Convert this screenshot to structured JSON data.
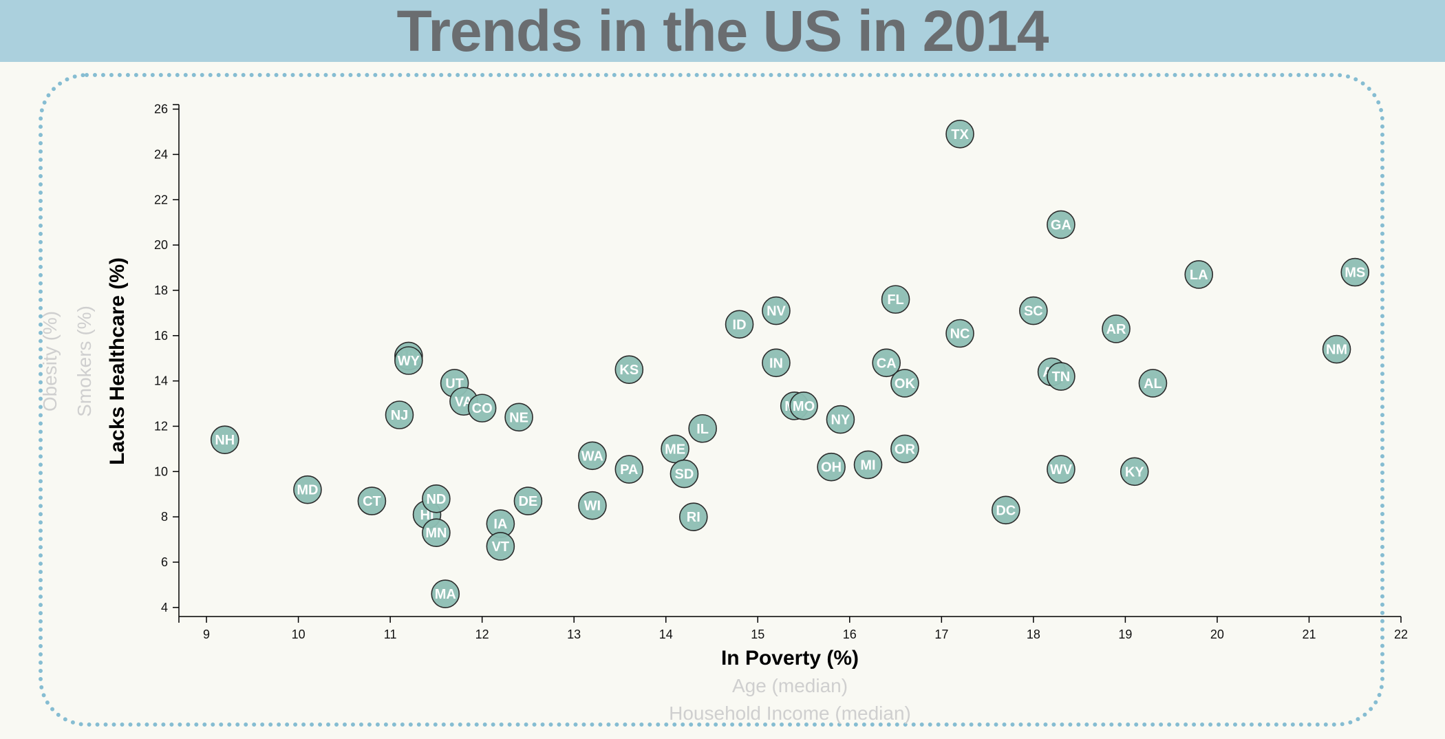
{
  "header": {
    "title": "Trends in the US in 2014"
  },
  "axes": {
    "x_labels": [
      {
        "text": "In Poverty (%)",
        "active": true
      },
      {
        "text": "Age (median)",
        "active": false
      },
      {
        "text": "Household Income (median)",
        "active": false
      }
    ],
    "y_labels": [
      {
        "text": "Lacks Healthcare (%)",
        "active": true
      },
      {
        "text": "Smokers (%)",
        "active": false
      },
      {
        "text": "Obesity (%)",
        "active": false
      }
    ]
  },
  "chart_data": {
    "type": "scatter",
    "title": "Trends in the US in 2014",
    "xlabel": "In Poverty (%)",
    "ylabel": "Lacks Healthcare (%)",
    "xlim": [
      8.7,
      22
    ],
    "ylim": [
      3.6,
      26.2
    ],
    "xticks": [
      9,
      10,
      11,
      12,
      13,
      14,
      15,
      16,
      17,
      18,
      19,
      20,
      21,
      22
    ],
    "yticks": [
      4,
      6,
      8,
      10,
      12,
      14,
      16,
      18,
      20,
      22,
      24,
      26
    ],
    "points": [
      {
        "label": "NH",
        "x": 9.2,
        "y": 11.4
      },
      {
        "label": "MD",
        "x": 10.1,
        "y": 9.2
      },
      {
        "label": "CT",
        "x": 10.8,
        "y": 8.7
      },
      {
        "label": "NJ",
        "x": 11.1,
        "y": 12.5
      },
      {
        "label": "WY",
        "x": 11.2,
        "y": 15.1
      },
      {
        "label": "WY",
        "x": 11.2,
        "y": 14.9
      },
      {
        "label": "HI",
        "x": 11.4,
        "y": 8.1
      },
      {
        "label": "ND",
        "x": 11.5,
        "y": 8.8
      },
      {
        "label": "MN",
        "x": 11.5,
        "y": 7.3
      },
      {
        "label": "MA",
        "x": 11.6,
        "y": 4.6
      },
      {
        "label": "UT",
        "x": 11.7,
        "y": 13.9
      },
      {
        "label": "VA",
        "x": 11.8,
        "y": 13.1
      },
      {
        "label": "CO",
        "x": 12.0,
        "y": 12.8
      },
      {
        "label": "IA",
        "x": 12.2,
        "y": 7.7
      },
      {
        "label": "VT",
        "x": 12.2,
        "y": 6.7
      },
      {
        "label": "NE",
        "x": 12.4,
        "y": 12.4
      },
      {
        "label": "DE",
        "x": 12.5,
        "y": 8.7
      },
      {
        "label": "WA",
        "x": 13.2,
        "y": 10.7
      },
      {
        "label": "WI",
        "x": 13.2,
        "y": 8.5
      },
      {
        "label": "KS",
        "x": 13.6,
        "y": 14.5
      },
      {
        "label": "PA",
        "x": 13.6,
        "y": 10.1
      },
      {
        "label": "ME",
        "x": 14.1,
        "y": 11.0
      },
      {
        "label": "SD",
        "x": 14.2,
        "y": 9.9
      },
      {
        "label": "RI",
        "x": 14.3,
        "y": 8.0
      },
      {
        "label": "IL",
        "x": 14.4,
        "y": 11.9
      },
      {
        "label": "ID",
        "x": 14.8,
        "y": 16.5
      },
      {
        "label": "NV",
        "x": 15.2,
        "y": 17.1
      },
      {
        "label": "IN",
        "x": 15.2,
        "y": 14.8
      },
      {
        "label": "MT",
        "x": 15.4,
        "y": 12.9
      },
      {
        "label": "MO",
        "x": 15.5,
        "y": 12.9
      },
      {
        "label": "OH",
        "x": 15.8,
        "y": 10.2
      },
      {
        "label": "NY",
        "x": 15.9,
        "y": 12.3
      },
      {
        "label": "MI",
        "x": 16.2,
        "y": 10.3
      },
      {
        "label": "CA",
        "x": 16.4,
        "y": 14.8
      },
      {
        "label": "FL",
        "x": 16.5,
        "y": 17.6
      },
      {
        "label": "OK",
        "x": 16.6,
        "y": 13.9
      },
      {
        "label": "OR",
        "x": 16.6,
        "y": 11.0
      },
      {
        "label": "TX",
        "x": 17.2,
        "y": 24.9
      },
      {
        "label": "NC",
        "x": 17.2,
        "y": 16.1
      },
      {
        "label": "DC",
        "x": 17.7,
        "y": 8.3
      },
      {
        "label": "SC",
        "x": 18.0,
        "y": 17.1
      },
      {
        "label": "AZ",
        "x": 18.2,
        "y": 14.4
      },
      {
        "label": "TN",
        "x": 18.3,
        "y": 14.2
      },
      {
        "label": "GA",
        "x": 18.3,
        "y": 20.9
      },
      {
        "label": "WV",
        "x": 18.3,
        "y": 10.1
      },
      {
        "label": "AR",
        "x": 18.9,
        "y": 16.3
      },
      {
        "label": "KY",
        "x": 19.1,
        "y": 10.0
      },
      {
        "label": "AL",
        "x": 19.3,
        "y": 13.9
      },
      {
        "label": "LA",
        "x": 19.8,
        "y": 18.7
      },
      {
        "label": "NM",
        "x": 21.3,
        "y": 15.4
      },
      {
        "label": "MS",
        "x": 21.5,
        "y": 18.8
      }
    ]
  }
}
